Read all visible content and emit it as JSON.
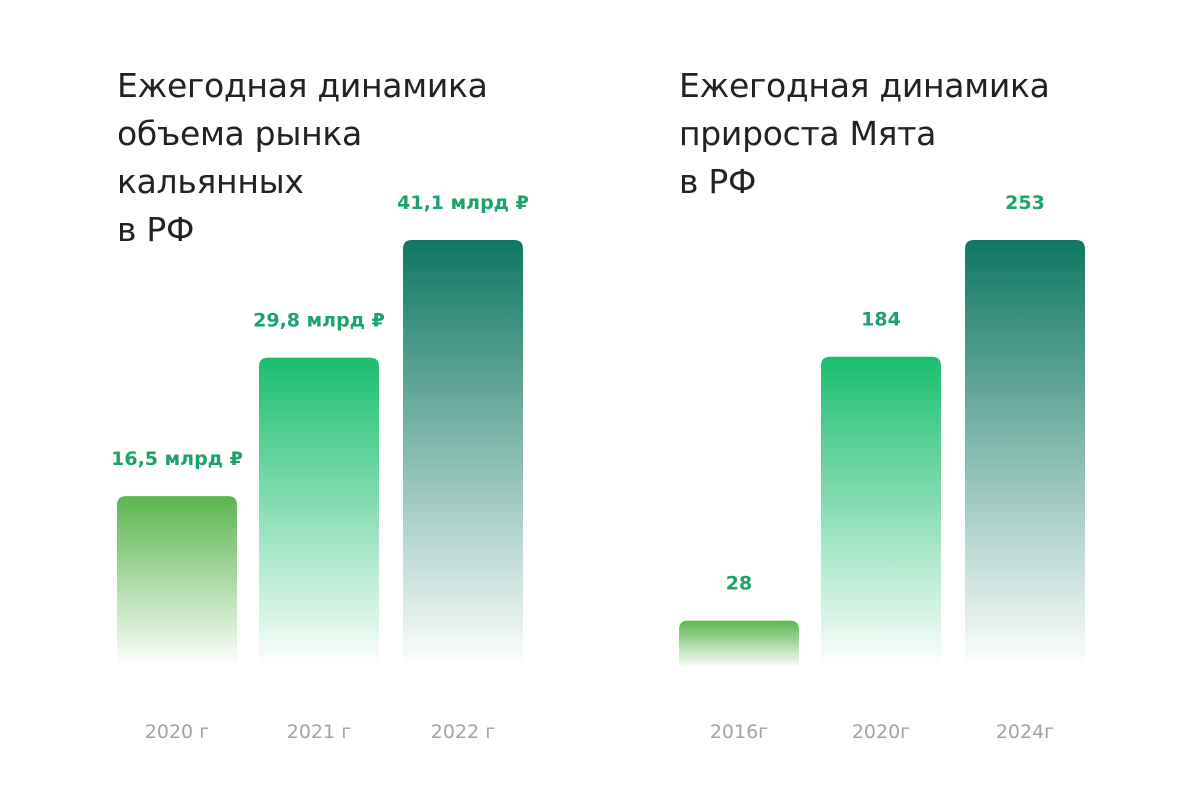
{
  "chart_data": [
    {
      "type": "bar",
      "title_lines": [
        "Ежегодная динамика",
        "объема рынка",
        "кальянных",
        "в РФ"
      ],
      "categories": [
        "2020 г",
        "2021 г",
        "2022 г"
      ],
      "values": [
        16.5,
        29.8,
        41.1
      ],
      "value_labels": [
        "16,5 млрд ₽",
        "29,8 млрд ₽",
        "41,1 млрд ₽"
      ],
      "unit": "млрд ₽",
      "ylim": [
        0,
        41.1
      ],
      "grid": false,
      "legend": "none"
    },
    {
      "type": "bar",
      "title_lines": [
        "Ежегодная динамика",
        "прироста Мята",
        "в РФ"
      ],
      "categories": [
        "2016г",
        "2020г",
        "2024г"
      ],
      "values": [
        28,
        184,
        253
      ],
      "value_labels": [
        "28",
        "184",
        "253"
      ],
      "ylim": [
        0,
        253
      ],
      "grid": false,
      "legend": "none"
    }
  ],
  "colors": {
    "light_green": "#5bb54f",
    "mid_green": "#19be6e",
    "dark_green": "#0e7762",
    "label_green": "#1aa36b",
    "tick_gray": "#a3a3a3",
    "title": "#222222"
  }
}
